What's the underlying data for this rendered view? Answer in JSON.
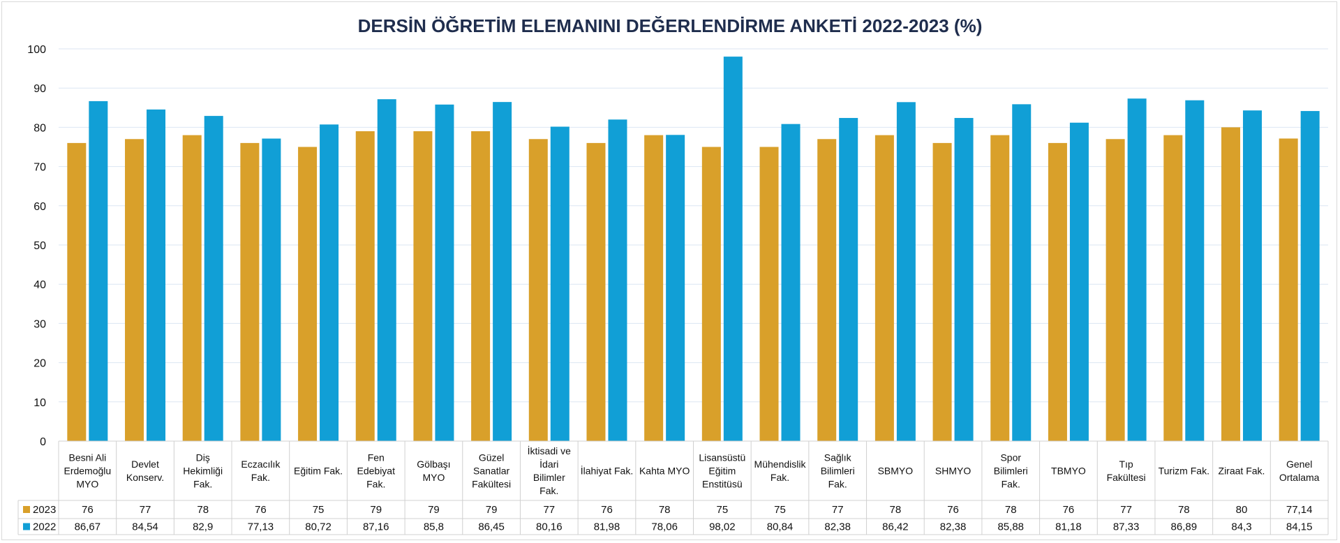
{
  "chart_data": {
    "type": "bar",
    "title": "DERSİN ÖĞRETİM ELEMANINI DEĞERLENDİRME ANKETİ 2022-2023 (%)",
    "ylim": [
      0,
      100
    ],
    "yticks": [
      "0",
      "10",
      "20",
      "30",
      "40",
      "50",
      "60",
      "70",
      "80",
      "90",
      "100"
    ],
    "grid": true,
    "legend": "data-table",
    "categories": [
      [
        "Besni Ali",
        "Erdemoğlu",
        "MYO"
      ],
      [
        "Devlet",
        "Konserv."
      ],
      [
        "Diş",
        "Hekimliği",
        "Fak."
      ],
      [
        "Eczacılık",
        "Fak."
      ],
      [
        "Eğitim Fak."
      ],
      [
        "Fen",
        "Edebiyat",
        "Fak."
      ],
      [
        "Gölbaşı",
        "MYO"
      ],
      [
        "Güzel",
        "Sanatlar",
        "Fakültesi"
      ],
      [
        "İktisadi ve",
        "İdari",
        "Bilimler",
        "Fak."
      ],
      [
        "İlahiyat Fak."
      ],
      [
        "Kahta MYO"
      ],
      [
        "Lisansüstü",
        "Eğitim",
        "Enstitüsü"
      ],
      [
        "Mühendislik",
        "Fak."
      ],
      [
        "Sağlık",
        "Bilimleri",
        "Fak."
      ],
      [
        "SBMYO"
      ],
      [
        "SHMYO"
      ],
      [
        "Spor",
        "Bilimleri",
        "Fak."
      ],
      [
        "TBMYO"
      ],
      [
        "Tıp",
        "Fakültesi"
      ],
      [
        "Turizm Fak."
      ],
      [
        "Ziraat Fak."
      ],
      [
        "Genel",
        "Ortalama"
      ]
    ],
    "series": [
      {
        "name": "2023",
        "color": "#d9a02a",
        "values": [
          76,
          77,
          78,
          76,
          75,
          79,
          79,
          79,
          77,
          76,
          78,
          75,
          75,
          77,
          78,
          76,
          78,
          76,
          77,
          78,
          80,
          77.14
        ],
        "labels": [
          "76",
          "77",
          "78",
          "76",
          "75",
          "79",
          "79",
          "79",
          "77",
          "76",
          "78",
          "75",
          "75",
          "77",
          "78",
          "76",
          "78",
          "76",
          "77",
          "78",
          "80",
          "77,14"
        ]
      },
      {
        "name": "2022",
        "color": "#119fd6",
        "values": [
          86.67,
          84.54,
          82.9,
          77.13,
          80.72,
          87.16,
          85.8,
          86.45,
          80.16,
          81.98,
          78.06,
          98.02,
          80.84,
          82.38,
          86.42,
          82.38,
          85.88,
          81.18,
          87.33,
          86.89,
          84.3,
          84.15
        ],
        "labels": [
          "86,67",
          "84,54",
          "82,9",
          "77,13",
          "80,72",
          "87,16",
          "85,8",
          "86,45",
          "80,16",
          "81,98",
          "78,06",
          "98,02",
          "80,84",
          "82,38",
          "86,42",
          "82,38",
          "85,88",
          "81,18",
          "87,33",
          "86,89",
          "84,3",
          "84,15"
        ]
      }
    ]
  }
}
